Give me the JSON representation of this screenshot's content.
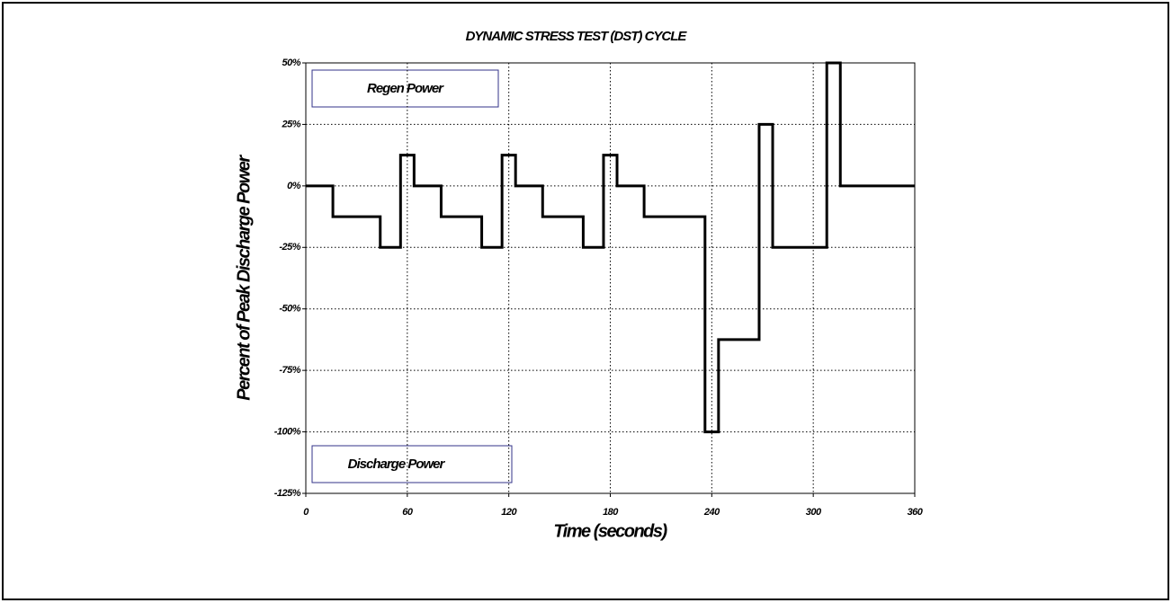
{
  "chart_data": {
    "type": "line",
    "step": "post",
    "title": "DYNAMIC STRESS TEST (DST) CYCLE",
    "xlabel": "Time (seconds)",
    "ylabel": "Percent of Peak Discharge Power",
    "annotations": [
      "Regen Power",
      "Discharge Power"
    ],
    "x": [
      0,
      16,
      44,
      56,
      64,
      80,
      104,
      116,
      124,
      140,
      164,
      176,
      184,
      200,
      236,
      244,
      268,
      276,
      308,
      316,
      360
    ],
    "series": [
      {
        "color": "#000000",
        "values": [
          0,
          -12.5,
          -25,
          12.5,
          0,
          -12.5,
          -25,
          12.5,
          0,
          -12.5,
          -25,
          12.5,
          0,
          -12.5,
          -100,
          -62.5,
          25,
          -25,
          50,
          0,
          0
        ]
      }
    ],
    "xlim": [
      0,
      360
    ],
    "xticks": [
      0,
      60,
      120,
      180,
      240,
      300,
      360
    ],
    "ylim": [
      -125,
      50
    ],
    "yticks": [
      {
        "value": -125,
        "label": "-125%"
      },
      {
        "value": -100,
        "label": "-100%"
      },
      {
        "value": -75,
        "label": "-75%"
      },
      {
        "value": -50,
        "label": "-50%"
      },
      {
        "value": -25,
        "label": "-25%"
      },
      {
        "value": 0,
        "label": "0%"
      },
      {
        "value": 25,
        "label": "25%"
      },
      {
        "value": 50,
        "label": "50%"
      }
    ],
    "grid": true
  }
}
